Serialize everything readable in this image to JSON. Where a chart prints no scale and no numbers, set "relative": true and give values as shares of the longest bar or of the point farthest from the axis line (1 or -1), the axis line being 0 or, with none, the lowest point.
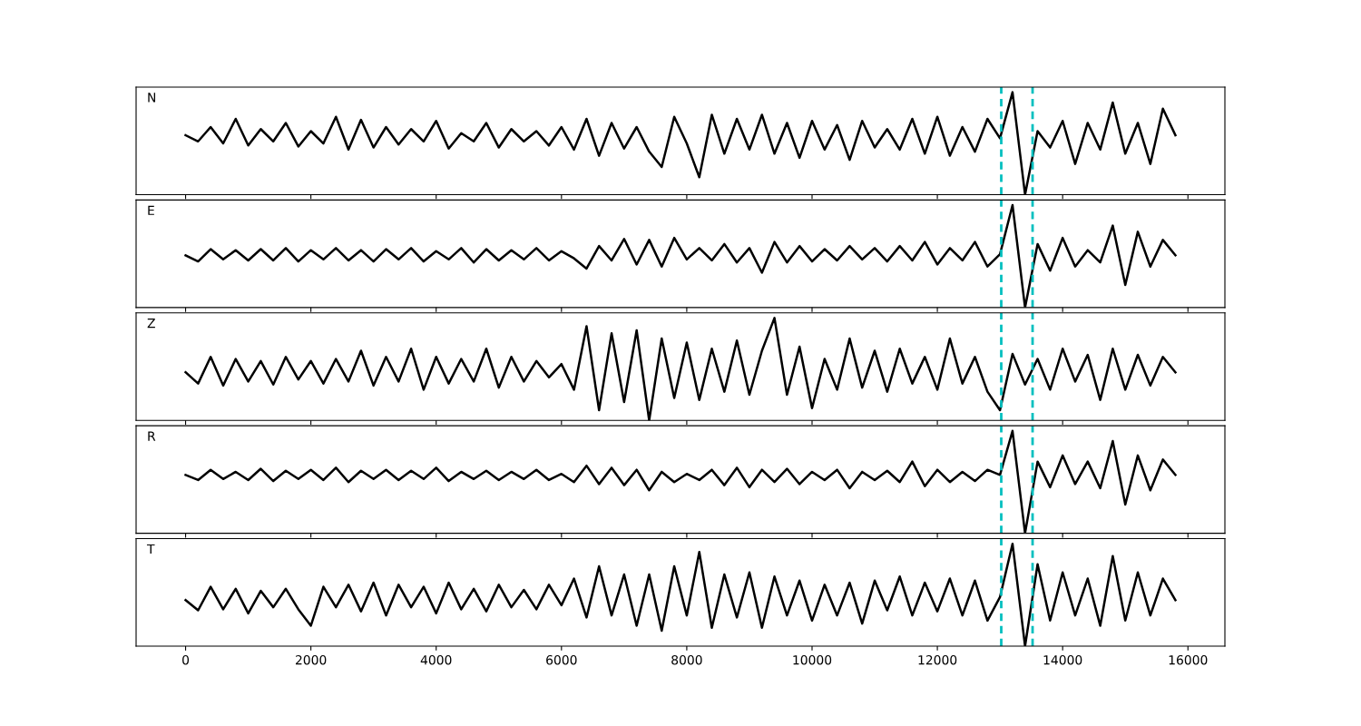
{
  "chart_data": [
    {
      "type": "line",
      "relative": true,
      "annotations": [
        "N"
      ],
      "x": [
        0,
        200,
        400,
        600,
        800,
        1000,
        1200,
        1400,
        1600,
        1800,
        2000,
        2200,
        2400,
        2600,
        2800,
        3000,
        3200,
        3400,
        3600,
        3800,
        4000,
        4200,
        4400,
        4600,
        4800,
        5000,
        5200,
        5400,
        5600,
        5800,
        6000,
        6200,
        6400,
        6600,
        6800,
        7000,
        7200,
        7400,
        7600,
        7800,
        8000,
        8200,
        8400,
        8600,
        8800,
        9000,
        9200,
        9400,
        9600,
        9800,
        10000,
        10200,
        10400,
        10600,
        10800,
        11000,
        11200,
        11400,
        11600,
        11800,
        12000,
        12200,
        12400,
        12600,
        12800,
        13000,
        13200,
        13400,
        13600,
        13800,
        14000,
        14200,
        14400,
        14600,
        14800,
        15000,
        15200,
        15400,
        15600,
        15800
      ],
      "xlim": [
        -790,
        16590
      ],
      "xticks": [
        0,
        2000,
        4000,
        6000,
        8000,
        10000,
        12000,
        14000,
        16000
      ],
      "tick_labels": false,
      "grid": false,
      "legend": false,
      "marker": "none",
      "line_style": "solid",
      "ref_lines": [
        {
          "axis": "x",
          "value": 13020,
          "color": "#00bfbf",
          "line_style": "dashed"
        },
        {
          "axis": "x",
          "value": 13520,
          "color": "#00bfbf",
          "line_style": "dashed"
        }
      ],
      "series": [
        {
          "color": "#000000",
          "values": [
            0.58,
            0.52,
            0.66,
            0.5,
            0.74,
            0.48,
            0.64,
            0.52,
            0.7,
            0.47,
            0.62,
            0.5,
            0.76,
            0.44,
            0.73,
            0.46,
            0.66,
            0.49,
            0.64,
            0.52,
            0.72,
            0.45,
            0.6,
            0.52,
            0.7,
            0.46,
            0.64,
            0.52,
            0.62,
            0.48,
            0.66,
            0.44,
            0.74,
            0.38,
            0.7,
            0.45,
            0.66,
            0.42,
            0.27,
            0.76,
            0.5,
            0.17,
            0.78,
            0.4,
            0.74,
            0.44,
            0.78,
            0.4,
            0.7,
            0.36,
            0.72,
            0.44,
            0.68,
            0.34,
            0.72,
            0.46,
            0.64,
            0.44,
            0.74,
            0.4,
            0.76,
            0.38,
            0.66,
            0.42,
            0.74,
            0.55,
            1.0,
            0.0,
            0.62,
            0.46,
            0.72,
            0.3,
            0.7,
            0.44,
            0.9,
            0.4,
            0.7,
            0.3,
            0.84,
            0.58
          ]
        }
      ]
    },
    {
      "type": "line",
      "relative": true,
      "annotations": [
        "E"
      ],
      "x": [
        0,
        200,
        400,
        600,
        800,
        1000,
        1200,
        1400,
        1600,
        1800,
        2000,
        2200,
        2400,
        2600,
        2800,
        3000,
        3200,
        3400,
        3600,
        3800,
        4000,
        4200,
        4400,
        4600,
        4800,
        5000,
        5200,
        5400,
        5600,
        5800,
        6000,
        6200,
        6400,
        6600,
        6800,
        7000,
        7200,
        7400,
        7600,
        7800,
        8000,
        8200,
        8400,
        8600,
        8800,
        9000,
        9200,
        9400,
        9600,
        9800,
        10000,
        10200,
        10400,
        10600,
        10800,
        11000,
        11200,
        11400,
        11600,
        11800,
        12000,
        12200,
        12400,
        12600,
        12800,
        13000,
        13200,
        13400,
        13600,
        13800,
        14000,
        14200,
        14400,
        14600,
        14800,
        15000,
        15200,
        15400,
        15600,
        15800
      ],
      "xlim": [
        -790,
        16590
      ],
      "xticks": [
        0,
        2000,
        4000,
        6000,
        8000,
        10000,
        12000,
        14000,
        16000
      ],
      "tick_labels": false,
      "grid": false,
      "legend": false,
      "marker": "none",
      "line_style": "solid",
      "ref_lines": [
        {
          "axis": "x",
          "value": 13020,
          "color": "#00bfbf",
          "line_style": "dashed"
        },
        {
          "axis": "x",
          "value": 13520,
          "color": "#00bfbf",
          "line_style": "dashed"
        }
      ],
      "series": [
        {
          "color": "#000000",
          "values": [
            0.51,
            0.45,
            0.57,
            0.47,
            0.56,
            0.46,
            0.57,
            0.46,
            0.58,
            0.45,
            0.56,
            0.47,
            0.58,
            0.46,
            0.56,
            0.45,
            0.57,
            0.47,
            0.58,
            0.45,
            0.55,
            0.47,
            0.58,
            0.44,
            0.57,
            0.46,
            0.56,
            0.47,
            0.58,
            0.46,
            0.55,
            0.48,
            0.38,
            0.6,
            0.46,
            0.67,
            0.42,
            0.66,
            0.4,
            0.68,
            0.47,
            0.58,
            0.46,
            0.62,
            0.44,
            0.58,
            0.34,
            0.64,
            0.44,
            0.6,
            0.45,
            0.57,
            0.46,
            0.6,
            0.47,
            0.58,
            0.45,
            0.6,
            0.46,
            0.64,
            0.42,
            0.58,
            0.46,
            0.64,
            0.4,
            0.52,
            1.0,
            0.0,
            0.62,
            0.36,
            0.68,
            0.4,
            0.56,
            0.44,
            0.8,
            0.22,
            0.74,
            0.4,
            0.66,
            0.51
          ]
        }
      ]
    },
    {
      "type": "line",
      "relative": true,
      "annotations": [
        "Z"
      ],
      "x": [
        0,
        200,
        400,
        600,
        800,
        1000,
        1200,
        1400,
        1600,
        1800,
        2000,
        2200,
        2400,
        2600,
        2800,
        3000,
        3200,
        3400,
        3600,
        3800,
        4000,
        4200,
        4400,
        4600,
        4800,
        5000,
        5200,
        5400,
        5600,
        5800,
        6000,
        6200,
        6400,
        6600,
        6800,
        7000,
        7200,
        7400,
        7600,
        7800,
        8000,
        8200,
        8400,
        8600,
        8800,
        9000,
        9200,
        9400,
        9600,
        9800,
        10000,
        10200,
        10400,
        10600,
        10800,
        11000,
        11200,
        11400,
        11600,
        11800,
        12000,
        12200,
        12400,
        12600,
        12800,
        13000,
        13200,
        13400,
        13600,
        13800,
        14000,
        14200,
        14400,
        14600,
        14800,
        15000,
        15200,
        15400,
        15600,
        15800
      ],
      "xlim": [
        -790,
        16590
      ],
      "xticks": [
        0,
        2000,
        4000,
        6000,
        8000,
        10000,
        12000,
        14000,
        16000
      ],
      "tick_labels": false,
      "grid": false,
      "legend": false,
      "marker": "none",
      "line_style": "solid",
      "ref_lines": [
        {
          "axis": "x",
          "value": 13020,
          "color": "#00bfbf",
          "line_style": "dashed"
        },
        {
          "axis": "x",
          "value": 13520,
          "color": "#00bfbf",
          "line_style": "dashed"
        }
      ],
      "series": [
        {
          "color": "#000000",
          "values": [
            0.47,
            0.36,
            0.62,
            0.34,
            0.6,
            0.38,
            0.58,
            0.35,
            0.62,
            0.4,
            0.58,
            0.36,
            0.6,
            0.38,
            0.68,
            0.34,
            0.62,
            0.38,
            0.7,
            0.3,
            0.62,
            0.36,
            0.6,
            0.38,
            0.7,
            0.32,
            0.62,
            0.38,
            0.58,
            0.42,
            0.55,
            0.3,
            0.92,
            0.1,
            0.85,
            0.18,
            0.88,
            0.0,
            0.8,
            0.22,
            0.76,
            0.2,
            0.7,
            0.28,
            0.78,
            0.25,
            0.68,
            1.0,
            0.25,
            0.72,
            0.12,
            0.6,
            0.3,
            0.8,
            0.32,
            0.68,
            0.28,
            0.7,
            0.36,
            0.62,
            0.3,
            0.8,
            0.36,
            0.62,
            0.28,
            0.1,
            0.65,
            0.35,
            0.6,
            0.3,
            0.7,
            0.38,
            0.64,
            0.2,
            0.7,
            0.3,
            0.64,
            0.34,
            0.62,
            0.47
          ]
        }
      ]
    },
    {
      "type": "line",
      "relative": true,
      "annotations": [
        "R"
      ],
      "x": [
        0,
        200,
        400,
        600,
        800,
        1000,
        1200,
        1400,
        1600,
        1800,
        2000,
        2200,
        2400,
        2600,
        2800,
        3000,
        3200,
        3400,
        3600,
        3800,
        4000,
        4200,
        4400,
        4600,
        4800,
        5000,
        5200,
        5400,
        5600,
        5800,
        6000,
        6200,
        6400,
        6600,
        6800,
        7000,
        7200,
        7400,
        7600,
        7800,
        8000,
        8200,
        8400,
        8600,
        8800,
        9000,
        9200,
        9400,
        9600,
        9800,
        10000,
        10200,
        10400,
        10600,
        10800,
        11000,
        11200,
        11400,
        11600,
        11800,
        12000,
        12200,
        12400,
        12600,
        12800,
        13000,
        13200,
        13400,
        13600,
        13800,
        14000,
        14200,
        14400,
        14600,
        14800,
        15000,
        15200,
        15400,
        15600,
        15800
      ],
      "xlim": [
        -790,
        16590
      ],
      "xticks": [
        0,
        2000,
        4000,
        6000,
        8000,
        10000,
        12000,
        14000,
        16000
      ],
      "tick_labels": false,
      "grid": false,
      "legend": false,
      "marker": "none",
      "line_style": "solid",
      "ref_lines": [
        {
          "axis": "x",
          "value": 13020,
          "color": "#00bfbf",
          "line_style": "dashed"
        },
        {
          "axis": "x",
          "value": 13520,
          "color": "#00bfbf",
          "line_style": "dashed"
        }
      ],
      "series": [
        {
          "color": "#000000",
          "values": [
            0.57,
            0.52,
            0.62,
            0.53,
            0.6,
            0.52,
            0.63,
            0.51,
            0.61,
            0.53,
            0.62,
            0.52,
            0.64,
            0.5,
            0.61,
            0.53,
            0.62,
            0.52,
            0.61,
            0.53,
            0.64,
            0.51,
            0.6,
            0.53,
            0.61,
            0.52,
            0.6,
            0.53,
            0.62,
            0.52,
            0.58,
            0.5,
            0.66,
            0.48,
            0.64,
            0.47,
            0.62,
            0.42,
            0.6,
            0.5,
            0.58,
            0.52,
            0.62,
            0.47,
            0.64,
            0.45,
            0.62,
            0.5,
            0.63,
            0.48,
            0.6,
            0.52,
            0.62,
            0.44,
            0.6,
            0.52,
            0.61,
            0.5,
            0.7,
            0.46,
            0.62,
            0.5,
            0.6,
            0.51,
            0.62,
            0.57,
            1.0,
            0.0,
            0.7,
            0.45,
            0.76,
            0.48,
            0.7,
            0.44,
            0.9,
            0.28,
            0.76,
            0.42,
            0.72,
            0.57
          ]
        }
      ]
    },
    {
      "type": "line",
      "relative": true,
      "annotations": [
        "T"
      ],
      "x": [
        0,
        200,
        400,
        600,
        800,
        1000,
        1200,
        1400,
        1600,
        1800,
        2000,
        2200,
        2400,
        2600,
        2800,
        3000,
        3200,
        3400,
        3600,
        3800,
        4000,
        4200,
        4400,
        4600,
        4800,
        5000,
        5200,
        5400,
        5600,
        5800,
        6000,
        6200,
        6400,
        6600,
        6800,
        7000,
        7200,
        7400,
        7600,
        7800,
        8000,
        8200,
        8400,
        8600,
        8800,
        9000,
        9200,
        9400,
        9600,
        9800,
        10000,
        10200,
        10400,
        10600,
        10800,
        11000,
        11200,
        11400,
        11600,
        11800,
        12000,
        12200,
        12400,
        12600,
        12800,
        13000,
        13200,
        13400,
        13600,
        13800,
        14000,
        14200,
        14400,
        14600,
        14800,
        15000,
        15200,
        15400,
        15600,
        15800
      ],
      "xlim": [
        -790,
        16590
      ],
      "xticks": [
        0,
        2000,
        4000,
        6000,
        8000,
        10000,
        12000,
        14000,
        16000
      ],
      "tick_labels": "x",
      "grid": false,
      "legend": false,
      "marker": "none",
      "line_style": "solid",
      "ref_lines": [
        {
          "axis": "x",
          "value": 13020,
          "color": "#00bfbf",
          "line_style": "dashed"
        },
        {
          "axis": "x",
          "value": 13520,
          "color": "#00bfbf",
          "line_style": "dashed"
        }
      ],
      "series": [
        {
          "color": "#000000",
          "values": [
            0.45,
            0.35,
            0.58,
            0.36,
            0.56,
            0.32,
            0.54,
            0.38,
            0.56,
            0.36,
            0.2,
            0.58,
            0.38,
            0.6,
            0.34,
            0.62,
            0.3,
            0.6,
            0.38,
            0.58,
            0.32,
            0.62,
            0.36,
            0.56,
            0.34,
            0.6,
            0.38,
            0.55,
            0.36,
            0.6,
            0.4,
            0.66,
            0.28,
            0.78,
            0.3,
            0.7,
            0.2,
            0.7,
            0.15,
            0.78,
            0.3,
            0.92,
            0.18,
            0.7,
            0.28,
            0.72,
            0.18,
            0.68,
            0.3,
            0.64,
            0.25,
            0.6,
            0.3,
            0.62,
            0.22,
            0.64,
            0.35,
            0.68,
            0.3,
            0.62,
            0.34,
            0.66,
            0.3,
            0.64,
            0.25,
            0.48,
            1.0,
            0.0,
            0.8,
            0.25,
            0.72,
            0.3,
            0.66,
            0.2,
            0.88,
            0.25,
            0.72,
            0.3,
            0.66,
            0.45
          ]
        }
      ]
    }
  ]
}
